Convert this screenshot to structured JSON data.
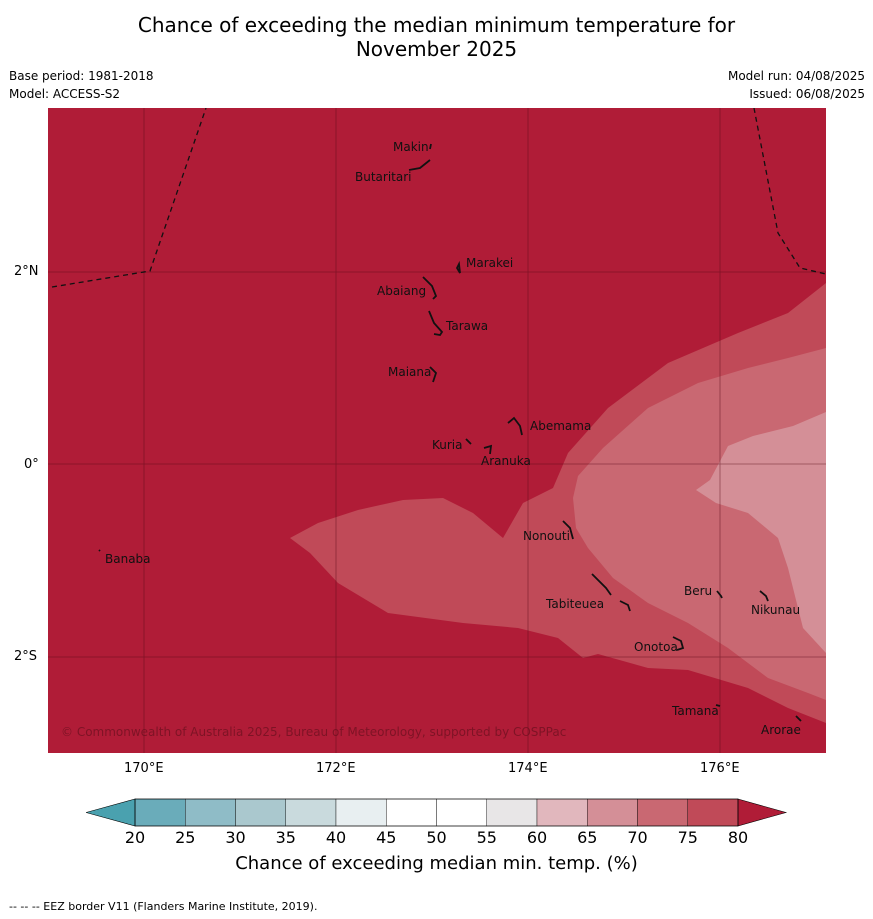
{
  "header": {
    "title_line1": "Chance of exceeding the median minimum temperature for",
    "title_line2": "November 2025",
    "base_period": "Base period: 1981-2018",
    "model": "Model: ACCESS-S2",
    "model_run": "Model run: 04/08/2025",
    "issued": "Issued: 06/08/2025"
  },
  "map": {
    "copyright": "© Commonwealth of Australia 2025, Bureau of Meteorology, supported by COSPPac",
    "lat_labels": [
      "2°N",
      "0°",
      "2°S"
    ],
    "lon_labels": [
      "170°E",
      "172°E",
      "174°E",
      "176°E"
    ],
    "islands": [
      {
        "name": "Makin"
      },
      {
        "name": "Butaritari"
      },
      {
        "name": "Marakei"
      },
      {
        "name": "Abaiang"
      },
      {
        "name": "Tarawa"
      },
      {
        "name": "Maiana"
      },
      {
        "name": "Abemama"
      },
      {
        "name": "Kuria"
      },
      {
        "name": "Aranuka"
      },
      {
        "name": "Nonouti"
      },
      {
        "name": "Banaba"
      },
      {
        "name": "Tabiteuea"
      },
      {
        "name": "Beru"
      },
      {
        "name": "Nikunau"
      },
      {
        "name": "Onotoa"
      },
      {
        "name": "Tamana"
      },
      {
        "name": "Arorae"
      }
    ],
    "colors": {
      "c75_80": "#b01c37",
      "c70_75": "#c04a58",
      "c65_70": "#c96872",
      "c60_65": "#d48f97",
      "c55_60": "#e1b7bd"
    }
  },
  "colorbar": {
    "ticks": [
      "20",
      "25",
      "30",
      "35",
      "40",
      "45",
      "50",
      "55",
      "60",
      "65",
      "70",
      "75",
      "80"
    ],
    "colors": [
      "#6aacba",
      "#8fbcc7",
      "#aac8ce",
      "#c9dadd",
      "#e8eff1",
      "#ffffff",
      "#ffffff",
      "#e8e6e7",
      "#e1b7bd",
      "#d48f97",
      "#c96872",
      "#c04a58"
    ],
    "low_color": "#4aa1af",
    "high_color": "#b01c37",
    "title": "Chance of exceeding median min. temp. (%)"
  },
  "footnote": "--  --  -- EEZ border V11 (Flanders Marine Institute, 2019)."
}
